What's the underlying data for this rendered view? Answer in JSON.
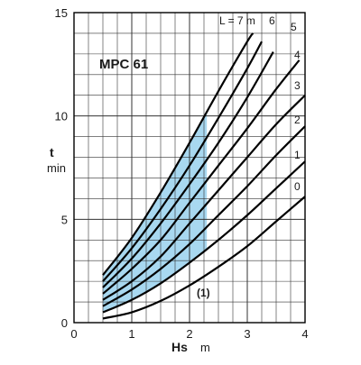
{
  "chart_data": {
    "type": "line",
    "title": "MPC 61",
    "xlabel": "Hs",
    "xunit": "m",
    "ylabel": "t",
    "yunit": "min",
    "xlim": [
      0,
      4
    ],
    "ylim": [
      0,
      15
    ],
    "xticks": [
      "0",
      "1",
      "2",
      "3",
      "4"
    ],
    "yticks": [
      "0",
      "5",
      "10",
      "15"
    ],
    "grid": true,
    "minor_x_step": 0.25,
    "minor_y_step": 1,
    "line_color": "#000000",
    "fill_color": "#a8d8f0",
    "curve_prefix": "L = 7 m",
    "series": [
      {
        "name": "0",
        "x": [
          0.5,
          1.0,
          1.5,
          2.0,
          2.5,
          3.0,
          3.5,
          4.0
        ],
        "y": [
          0.2,
          0.5,
          1.05,
          1.8,
          2.7,
          3.7,
          4.9,
          6.1
        ]
      },
      {
        "name": "1",
        "x": [
          0.5,
          1.0,
          1.5,
          2.0,
          2.5,
          3.0,
          3.5,
          4.0
        ],
        "y": [
          0.5,
          1.1,
          1.9,
          2.9,
          4.0,
          5.2,
          6.5,
          7.8
        ]
      },
      {
        "name": "2",
        "x": [
          0.5,
          1.0,
          1.5,
          2.0,
          2.5,
          3.0,
          3.5,
          4.0
        ],
        "y": [
          0.8,
          1.6,
          2.6,
          3.8,
          5.2,
          6.6,
          8.1,
          9.5
        ]
      },
      {
        "name": "3",
        "x": [
          0.5,
          1.0,
          1.5,
          2.0,
          2.5,
          3.0,
          3.5,
          4.0
        ],
        "y": [
          1.1,
          2.0,
          3.2,
          4.8,
          6.4,
          8.0,
          9.6,
          11.0
        ]
      },
      {
        "name": "4",
        "x": [
          0.5,
          1.0,
          1.5,
          2.0,
          2.5,
          3.0,
          3.5,
          3.9
        ],
        "y": [
          1.4,
          2.6,
          4.0,
          5.8,
          7.6,
          9.4,
          11.3,
          12.7
        ]
      },
      {
        "name": "5",
        "x": [
          0.5,
          1.0,
          1.5,
          2.0,
          2.5,
          3.0,
          3.45
        ],
        "y": [
          1.7,
          3.1,
          4.8,
          6.7,
          8.7,
          10.9,
          13.1
        ]
      },
      {
        "name": "6",
        "x": [
          0.5,
          1.0,
          1.5,
          2.0,
          2.5,
          3.0,
          3.25
        ],
        "y": [
          2.0,
          3.6,
          5.5,
          7.6,
          9.9,
          12.3,
          13.6
        ]
      },
      {
        "name": "7",
        "x": [
          0.5,
          1.0,
          1.5,
          2.0,
          2.5,
          3.0,
          3.1
        ],
        "y": [
          2.3,
          4.1,
          6.3,
          8.7,
          11.2,
          13.6,
          14.0
        ]
      }
    ],
    "highlight_band": {
      "label": "(1)",
      "x": [
        0.5,
        1.0,
        1.5,
        2.0,
        2.3
      ],
      "upper": [
        2.3,
        4.1,
        6.3,
        8.7,
        10.1
      ],
      "lower": [
        0.5,
        1.1,
        1.9,
        2.9,
        3.6
      ]
    }
  }
}
